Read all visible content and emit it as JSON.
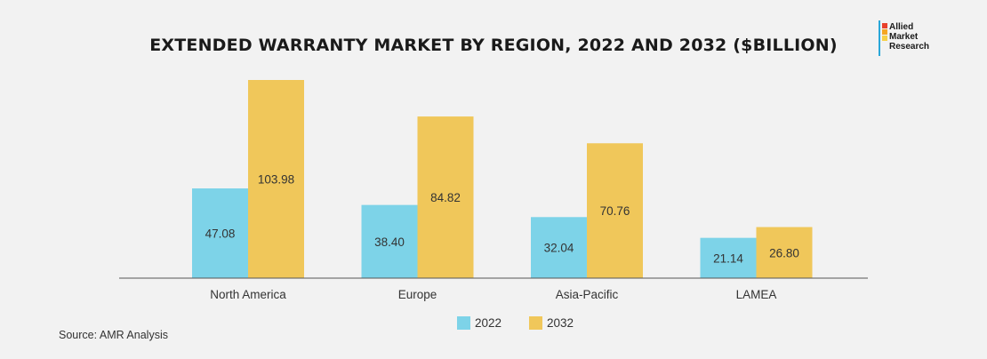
{
  "chart_data": {
    "type": "bar",
    "title": "EXTENDED WARRANTY MARKET BY REGION, 2022 AND 2032 ($BILLION)",
    "categories": [
      "North America",
      "Europe",
      "Asia-Pacific",
      "LAMEA"
    ],
    "series": [
      {
        "name": "2022",
        "color": "#7dd3e8",
        "values": [
          47.08,
          38.4,
          32.04,
          21.14
        ],
        "labels": [
          "47.08",
          "38.40",
          "32.04",
          "21.14"
        ]
      },
      {
        "name": "2032",
        "color": "#f0c75a",
        "values": [
          103.98,
          84.82,
          70.76,
          26.8
        ],
        "labels": [
          "103.98",
          "84.82",
          "70.76",
          "26.80"
        ]
      }
    ],
    "xlabel": "",
    "ylabel": "",
    "ylim": [
      0,
      110
    ],
    "legend_position": "bottom-center",
    "grid": false
  },
  "source": "Source: AMR Analysis",
  "logo": {
    "line1": "Allied",
    "line2": "Market",
    "line3": "Research",
    "colors": [
      "#e8412c",
      "#f5a623",
      "#f7d046",
      "#2aa7d8"
    ]
  }
}
